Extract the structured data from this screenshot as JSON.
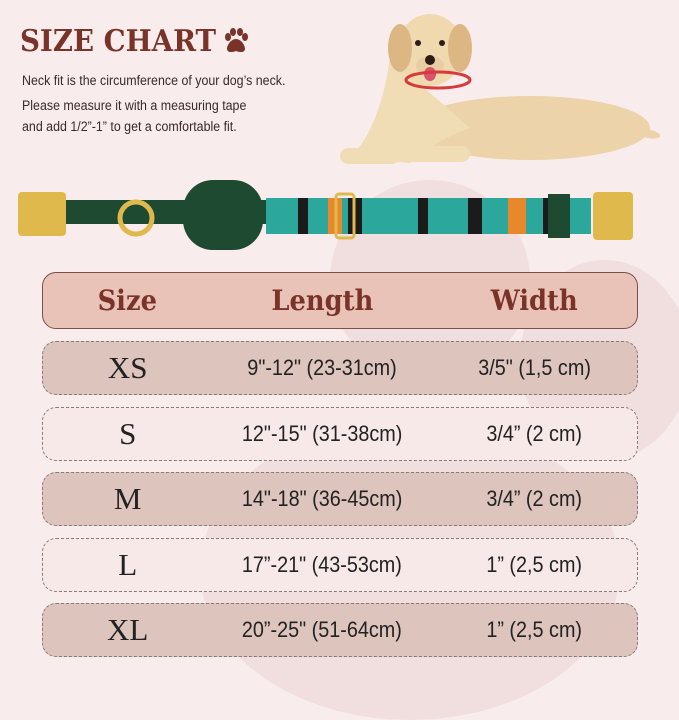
{
  "title": "SIZE CHART",
  "description": [
    "Neck fit is the circumference of your dog’s neck.",
    "Please measure it with a measuring tape",
    " and add 1/2”-1” to get a comfortable fit."
  ],
  "colors": {
    "accent": "#7a3328",
    "background": "#f9ecec",
    "header": "#e9c3b7",
    "row_dark": "#ddc4bd",
    "row_light": "#f7e9e7"
  },
  "table": {
    "headers": [
      "Size",
      "Length",
      "Width"
    ],
    "rows": [
      [
        "XS",
        "9\"-12\" (23-31cm)",
        "3/5\" (1,5 cm)"
      ],
      [
        "S",
        "12\"-15\" (31-38cm)",
        "3/4” (2 cm)"
      ],
      [
        "M",
        "14\"-18\" (36-45cm)",
        "3/4” (2 cm)"
      ],
      [
        "L",
        "17”-21\" (43-53cm)",
        "1”  (2,5 cm)"
      ],
      [
        "XL",
        "20”-25\" (51-64cm)",
        "1”  (2,5 cm)"
      ]
    ]
  },
  "icons": [
    "paw-icon",
    "dog-photo",
    "collar-photo"
  ]
}
